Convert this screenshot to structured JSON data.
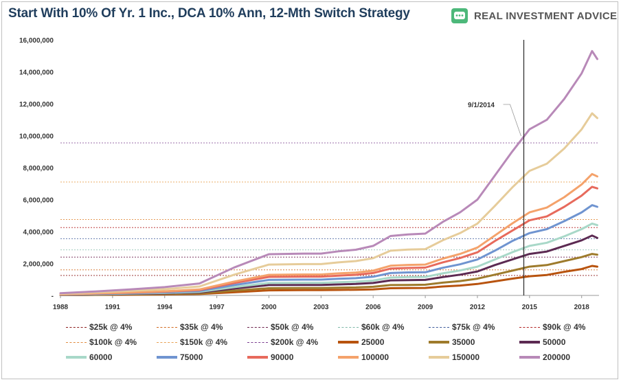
{
  "header": {
    "title": "Start With 10% Of Yr. 1 Inc., DCA 10% Ann, 12-Mth Switch Strategy",
    "brand": "REAL INVESTMENT ADVICE",
    "brand_color": "#4db87a"
  },
  "chart_data": {
    "type": "line",
    "title": "Start With 10% Of Yr. 1 Inc., DCA 10% Ann, 12-Mth Switch Strategy",
    "xlabel": "",
    "ylabel": "",
    "xlim": [
      1988,
      2019
    ],
    "ylim": [
      0,
      16000000
    ],
    "x_ticks": [
      "1988",
      "1991",
      "1994",
      "1997",
      "2000",
      "2003",
      "2006",
      "2009",
      "2012",
      "2015",
      "2018"
    ],
    "y_ticks": [
      "-",
      "2,000,000",
      "4,000,000",
      "6,000,000",
      "8,000,000",
      "10,000,000",
      "12,000,000",
      "14,000,000",
      "16,000,000"
    ],
    "grid": false,
    "legend_position": "bottom",
    "annotation": {
      "label": "9/1/2014",
      "x": 2014.67
    },
    "reference_lines": [
      {
        "name": "$25k @ 4%",
        "value": 1250000,
        "color": "#8b1a1a"
      },
      {
        "name": "$35k @ 4%",
        "value": 1600000,
        "color": "#d2691e"
      },
      {
        "name": "$50k @ 4%",
        "value": 2400000,
        "color": "#6b1f4a"
      },
      {
        "name": "$60k @ 4%",
        "value": 2850000,
        "color": "#7fb8a8"
      },
      {
        "name": "$75k @ 4%",
        "value": 3550000,
        "color": "#3d5a99"
      },
      {
        "name": "$90k @ 4%",
        "value": 4250000,
        "color": "#b22222"
      },
      {
        "name": "$100k @ 4%",
        "value": 4750000,
        "color": "#e08a3c"
      },
      {
        "name": "$150k @ 4%",
        "value": 7100000,
        "color": "#e8a050"
      },
      {
        "name": "$200k @ 4%",
        "value": 9550000,
        "color": "#7a3b8f"
      }
    ],
    "x": [
      1988,
      1990,
      1992,
      1994,
      1996,
      1998,
      2000,
      2002,
      2003,
      2004,
      2005,
      2006,
      2007,
      2008,
      2009,
      2010,
      2011,
      2012,
      2013,
      2014,
      2015,
      2016,
      2017,
      2018,
      2018.6,
      2018.9
    ],
    "series": [
      {
        "name": "25000",
        "color": "#b8530e",
        "values": [
          20000,
          30000,
          45000,
          60000,
          90000,
          200000,
          320000,
          330000,
          330000,
          345000,
          355000,
          380000,
          450000,
          460000,
          470000,
          560000,
          620000,
          720000,
          880000,
          1050000,
          1200000,
          1280000,
          1480000,
          1650000,
          1850000,
          1800000
        ]
      },
      {
        "name": "35000",
        "color": "#9e7b2c",
        "values": [
          25000,
          45000,
          65000,
          90000,
          130000,
          300000,
          450000,
          460000,
          460000,
          480000,
          500000,
          540000,
          650000,
          660000,
          670000,
          800000,
          900000,
          1050000,
          1300000,
          1550000,
          1800000,
          1900000,
          2150000,
          2400000,
          2600000,
          2550000
        ]
      },
      {
        "name": "50000",
        "color": "#5c2a52",
        "values": [
          35000,
          65000,
          95000,
          130000,
          190000,
          430000,
          650000,
          660000,
          660000,
          690000,
          720000,
          780000,
          940000,
          960000,
          970000,
          1150000,
          1300000,
          1500000,
          1900000,
          2250000,
          2600000,
          2750000,
          3100000,
          3450000,
          3750000,
          3600000
        ]
      },
      {
        "name": "60000",
        "color": "#a8d8c8",
        "values": [
          42000,
          78000,
          115000,
          155000,
          225000,
          520000,
          780000,
          790000,
          790000,
          830000,
          860000,
          930000,
          1120000,
          1150000,
          1160000,
          1380000,
          1560000,
          1800000,
          2250000,
          2700000,
          3100000,
          3300000,
          3700000,
          4150000,
          4500000,
          4400000
        ]
      },
      {
        "name": "75000",
        "color": "#6f94d0",
        "values": [
          52000,
          95000,
          140000,
          195000,
          280000,
          650000,
          970000,
          990000,
          990000,
          1040000,
          1080000,
          1170000,
          1400000,
          1440000,
          1450000,
          1730000,
          1950000,
          2250000,
          2800000,
          3400000,
          3900000,
          4150000,
          4650000,
          5200000,
          5650000,
          5550000
        ]
      },
      {
        "name": "90000",
        "color": "#e76a5c",
        "values": [
          63000,
          115000,
          170000,
          235000,
          340000,
          780000,
          1160000,
          1180000,
          1180000,
          1240000,
          1290000,
          1400000,
          1680000,
          1720000,
          1740000,
          2070000,
          2340000,
          2700000,
          3400000,
          4050000,
          4700000,
          4950000,
          5550000,
          6250000,
          6800000,
          6700000
        ]
      },
      {
        "name": "100000",
        "color": "#f4a26b",
        "values": [
          70000,
          128000,
          190000,
          260000,
          375000,
          870000,
          1290000,
          1310000,
          1310000,
          1380000,
          1430000,
          1550000,
          1860000,
          1910000,
          1930000,
          2300000,
          2600000,
          3000000,
          3750000,
          4500000,
          5200000,
          5500000,
          6150000,
          6950000,
          7600000,
          7450000
        ]
      },
      {
        "name": "150000",
        "color": "#e6cc9a",
        "values": [
          105000,
          190000,
          285000,
          390000,
          560000,
          1300000,
          1930000,
          1960000,
          1960000,
          2070000,
          2150000,
          2330000,
          2800000,
          2870000,
          2900000,
          3450000,
          3900000,
          4500000,
          5600000,
          6750000,
          7800000,
          8250000,
          9200000,
          10400000,
          11400000,
          11100000
        ]
      },
      {
        "name": "200000",
        "color": "#b889b8",
        "values": [
          140000,
          250000,
          380000,
          520000,
          750000,
          1750000,
          2580000,
          2620000,
          2620000,
          2760000,
          2860000,
          3100000,
          3720000,
          3820000,
          3870000,
          4600000,
          5200000,
          6000000,
          7500000,
          9000000,
          10400000,
          11000000,
          12300000,
          13900000,
          15300000,
          14800000
        ]
      }
    ]
  }
}
